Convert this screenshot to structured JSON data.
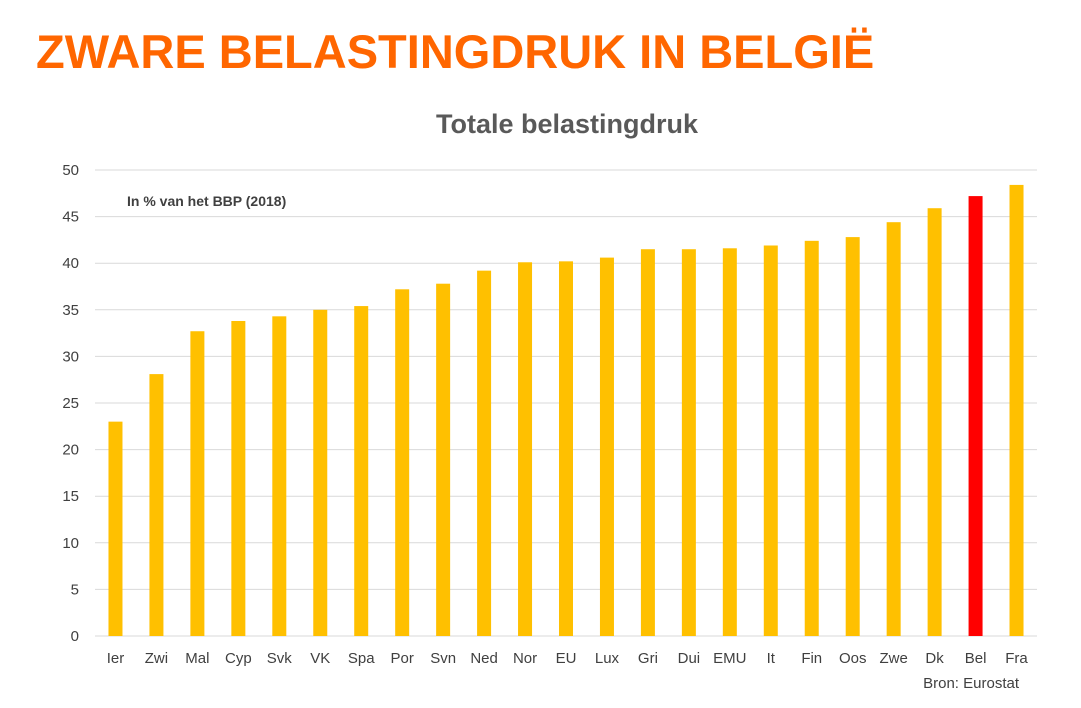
{
  "slide": {
    "headline": "ZWARE BELASTINGDRUK IN BELGIË"
  },
  "chart_data": {
    "type": "bar",
    "title": "Totale belastingdruk",
    "annotation": "In % van het BBP (2018)",
    "source": "Bron: Eurostat",
    "xlabel": "",
    "ylabel": "",
    "ylim": [
      0,
      50
    ],
    "yticks": [
      0,
      5,
      10,
      15,
      20,
      25,
      30,
      35,
      40,
      45,
      50
    ],
    "grid": true,
    "legend": "none",
    "categories": [
      "Ier",
      "Zwi",
      "Mal",
      "Cyp",
      "Svk",
      "VK",
      "Spa",
      "Por",
      "Svn",
      "Ned",
      "Nor",
      "EU",
      "Lux",
      "Gri",
      "Dui",
      "EMU",
      "It",
      "Fin",
      "Oos",
      "Zwe",
      "Dk",
      "Bel",
      "Fra"
    ],
    "values": [
      23.0,
      28.1,
      32.7,
      33.8,
      34.3,
      35.0,
      35.4,
      37.2,
      37.8,
      39.2,
      40.1,
      40.2,
      40.6,
      41.5,
      41.5,
      41.6,
      41.9,
      42.4,
      42.8,
      44.4,
      45.9,
      47.2,
      48.4
    ],
    "highlight": "Bel",
    "colors": {
      "bar": "#ffc000",
      "highlight": "#ff0000"
    }
  }
}
